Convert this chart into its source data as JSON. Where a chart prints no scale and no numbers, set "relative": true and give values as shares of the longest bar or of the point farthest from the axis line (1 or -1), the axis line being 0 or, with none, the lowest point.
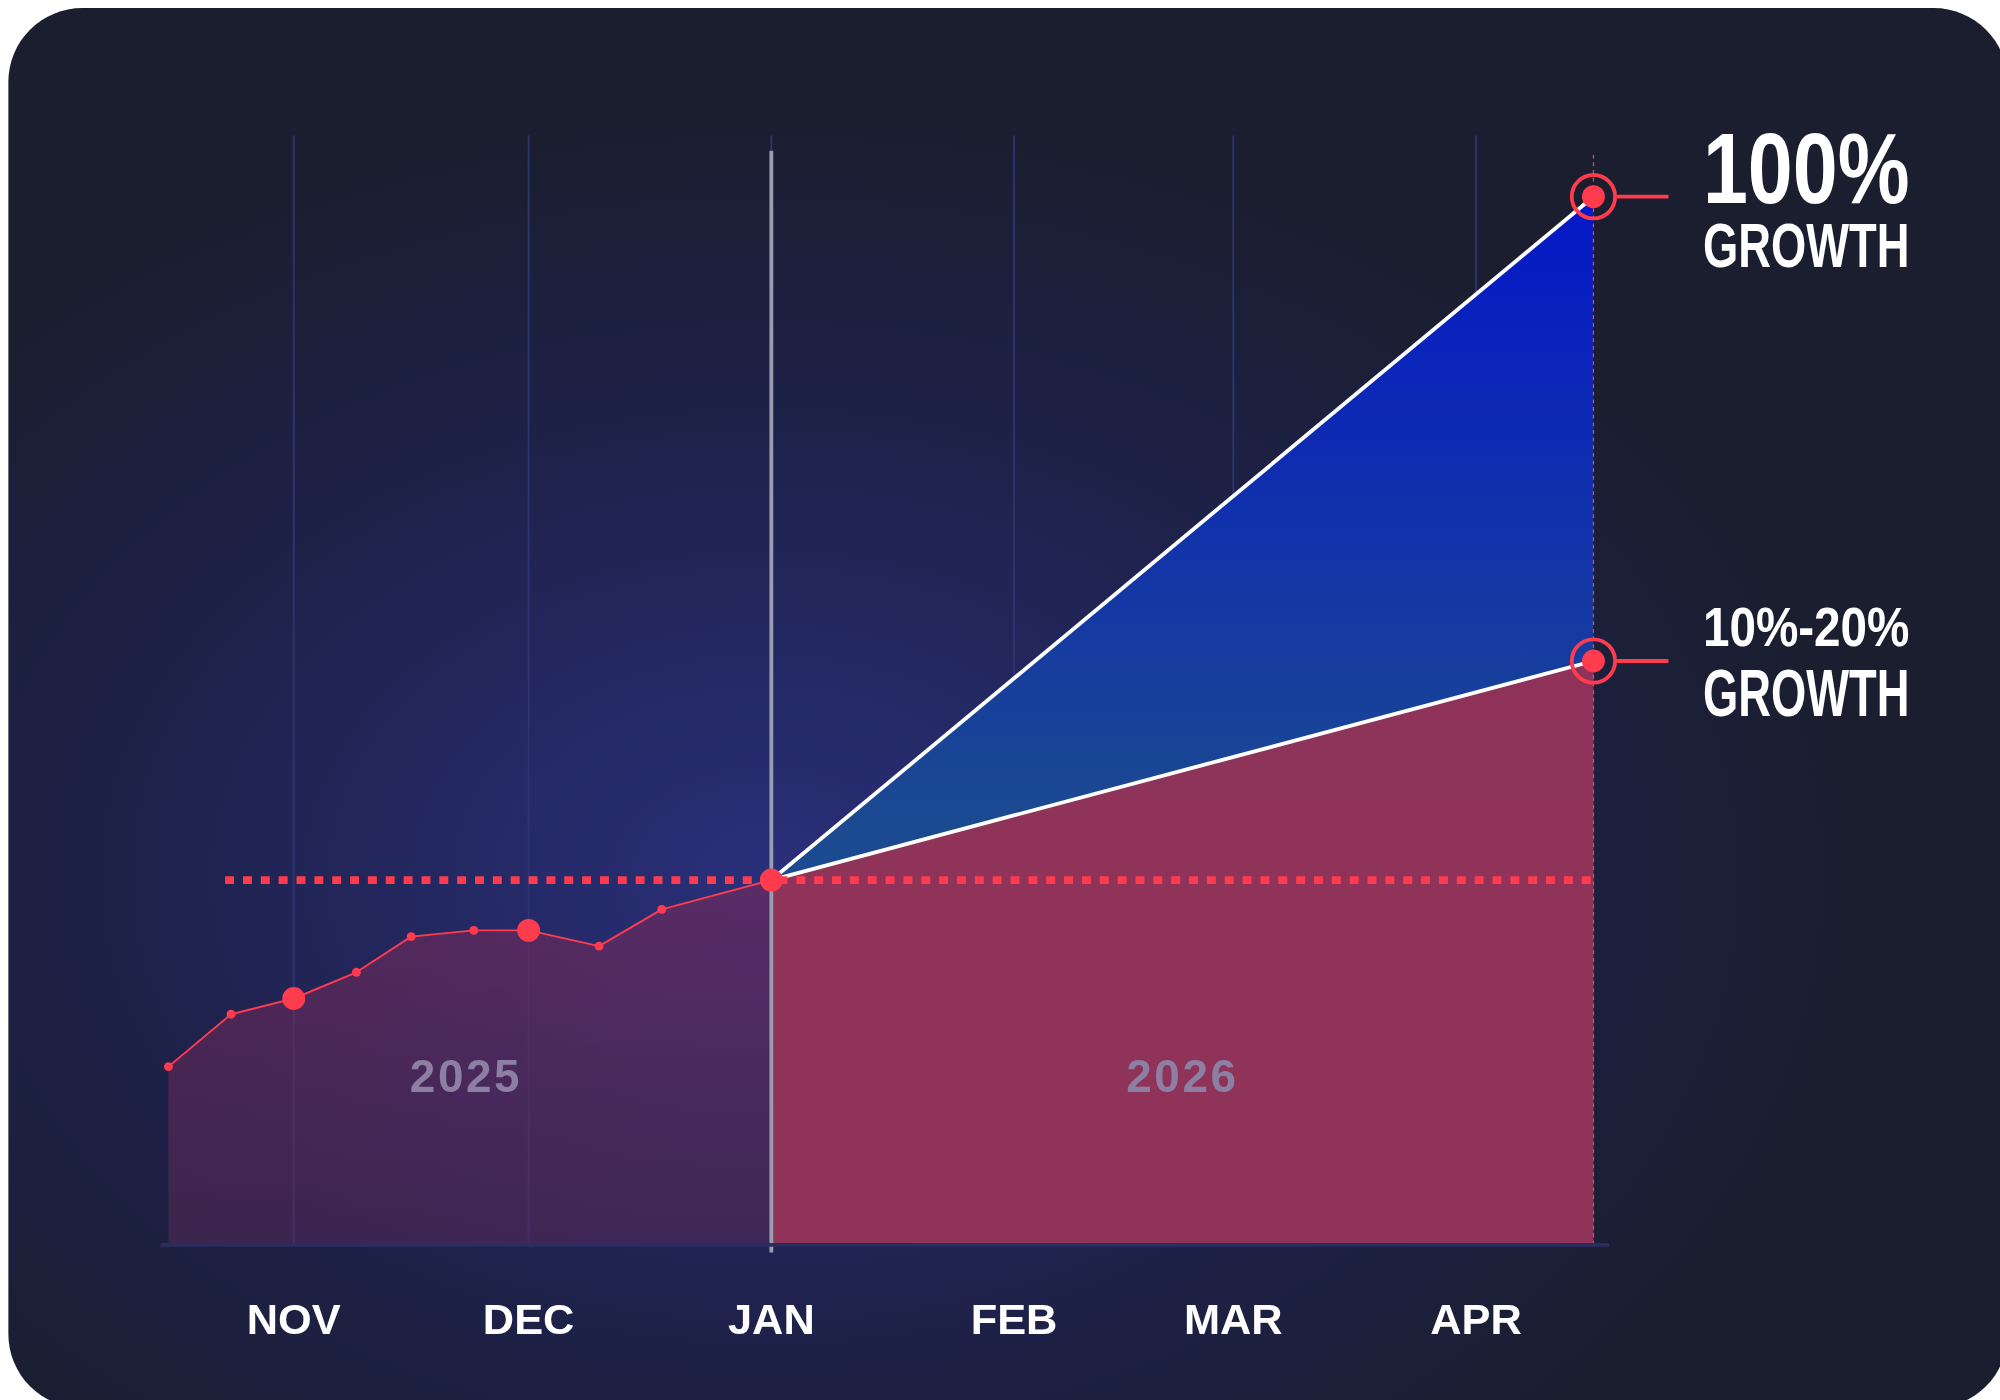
{
  "chart_data": {
    "type": "line",
    "relative": true,
    "xlim": [
      "2025-10-15",
      "2026-04-18"
    ],
    "xticks": [
      {
        "value": "2025-11-01",
        "label": "NOV"
      },
      {
        "value": "2025-12-01",
        "label": "DEC"
      },
      {
        "value": "2026-01-01",
        "label": "JAN"
      },
      {
        "value": "2026-02-01",
        "label": "FEB"
      },
      {
        "value": "2026-03-01",
        "label": "MAR"
      },
      {
        "value": "2026-04-01",
        "label": "APR"
      }
    ],
    "grid": "x",
    "marker": "circle",
    "series": [
      {
        "type": "area",
        "color": "#ff3b4e",
        "x": [
          "2025-10-16",
          "2025-10-24",
          "2025-11-01",
          "2025-11-09",
          "2025-11-16",
          "2025-11-24",
          "2025-12-01",
          "2025-12-10",
          "2025-12-18",
          "2026-01-01"
        ],
        "values": [
          0.17,
          0.22,
          0.235,
          0.26,
          0.294,
          0.3,
          0.3,
          0.285,
          0.32,
          0.348
        ]
      },
      {
        "type": "area",
        "color": "#ffffff",
        "x": [
          "2026-01-01",
          "2026-04-16"
        ],
        "values": [
          0.348,
          1
        ]
      },
      {
        "type": "area",
        "color": "#ffffff",
        "x": [
          "2026-01-01",
          "2026-04-16"
        ],
        "values": [
          0.348,
          0.557
        ]
      }
    ],
    "ref_lines": [
      {
        "axis": "y",
        "value": 0.348,
        "color": "#ff3b4e",
        "line_style": "dotted"
      },
      {
        "axis": "x",
        "value": "2026-01-01",
        "color": "#9a9cb0",
        "line_style": "solid"
      },
      {
        "axis": "x",
        "value": "2026-04-16",
        "color": "#ff3b4e",
        "line_style": "dotted"
      }
    ],
    "annotations": [
      {
        "text": "100%\nGROWTH",
        "x": "2026-04-16",
        "y": 1
      },
      {
        "text": "10%-20%\nGROWTH",
        "x": "2026-04-16",
        "y": 0.557
      },
      "2025",
      "2026"
    ]
  }
}
